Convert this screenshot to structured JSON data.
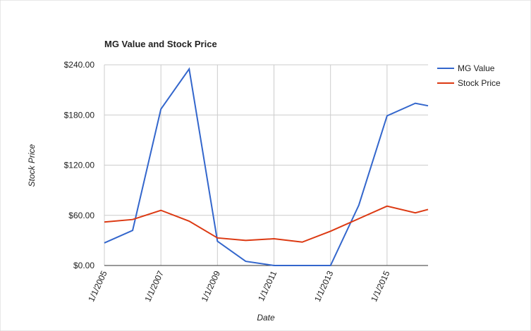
{
  "chart_data": {
    "type": "line",
    "title": "MG Value and Stock Price",
    "x_label": "Date",
    "y_label": "Stock Price",
    "x": [
      2005,
      2006,
      2007,
      2008,
      2009,
      2010,
      2011,
      2012,
      2013,
      2014,
      2015,
      2016,
      2016.45
    ],
    "series": [
      {
        "name": "MG Value",
        "color": "#3366cc",
        "values": [
          27,
          42,
          187,
          235,
          29,
          5,
          0,
          0,
          0,
          72,
          179,
          194,
          191
        ]
      },
      {
        "name": "Stock Price",
        "color": "#dc3912",
        "values": [
          52,
          55,
          66,
          53,
          33,
          30,
          32,
          28,
          41,
          56,
          71,
          63,
          67
        ]
      }
    ],
    "xlim": [
      2005,
      2016.45
    ],
    "xticks": [
      {
        "value": 2005,
        "label": "1/1/2005"
      },
      {
        "value": 2007,
        "label": "1/1/2007"
      },
      {
        "value": 2009,
        "label": "1/1/2009"
      },
      {
        "value": 2011,
        "label": "1/1/2011"
      },
      {
        "value": 2013,
        "label": "1/1/2013"
      },
      {
        "value": 2015,
        "label": "1/1/2015"
      }
    ],
    "ylim": [
      0,
      240
    ],
    "yticks": [
      {
        "value": 0,
        "label": "$0.00"
      },
      {
        "value": 60,
        "label": "$60.00"
      },
      {
        "value": 120,
        "label": "$120.00"
      },
      {
        "value": 180,
        "label": "$180.00"
      },
      {
        "value": 240,
        "label": "$240.00"
      }
    ],
    "grid": true,
    "legend": "right"
  }
}
